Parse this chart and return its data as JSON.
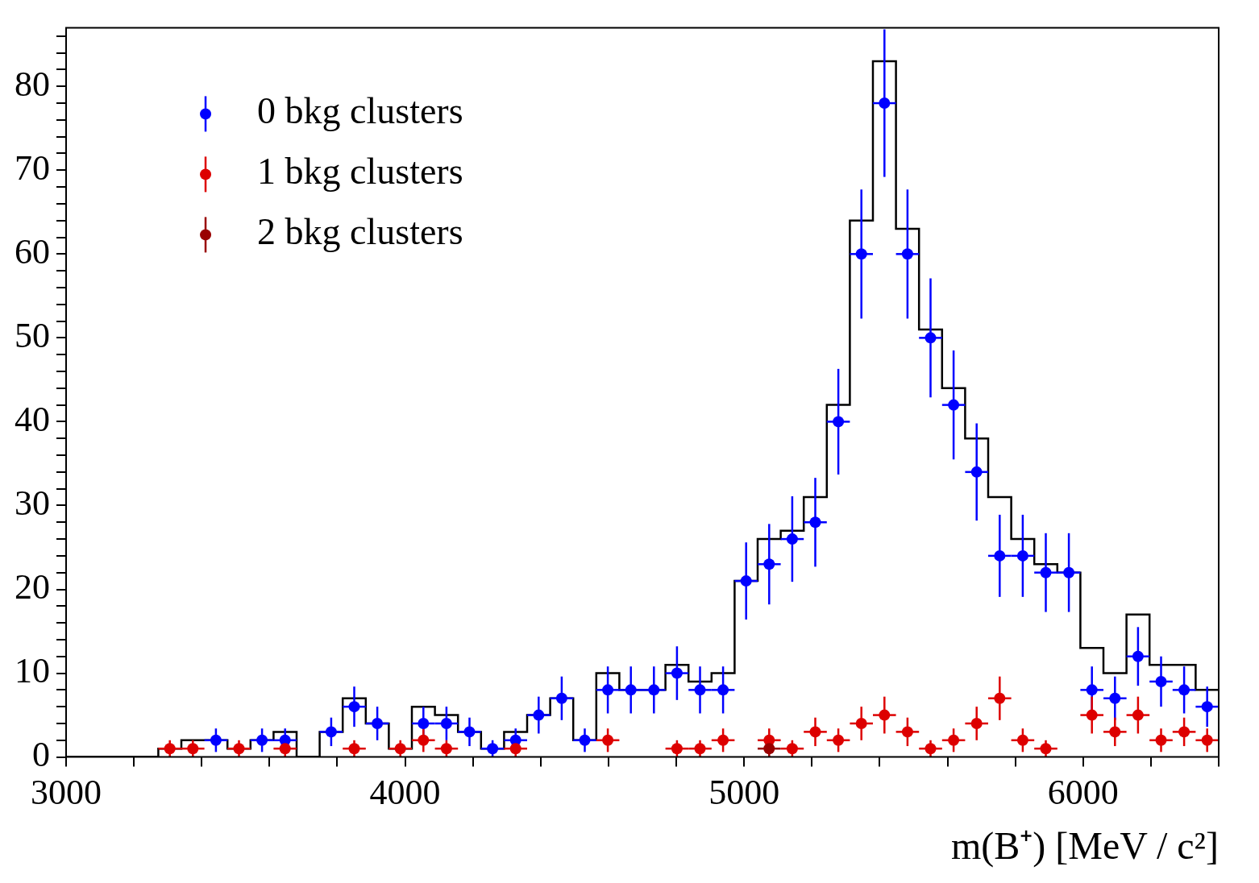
{
  "chart_data": {
    "type": "histogram",
    "xlabel": "m(B⁺) [MeV / c²]",
    "xlim": [
      3000,
      6400
    ],
    "ylim": [
      0,
      87
    ],
    "xticks": [
      3000,
      {
        "value": 3200,
        "label": null
      },
      {
        "value": 3400,
        "label": null
      },
      {
        "value": 3600,
        "label": null
      },
      {
        "value": 3800,
        "label": null
      },
      4000,
      {
        "value": 4200,
        "label": null
      },
      {
        "value": 4400,
        "label": null
      },
      {
        "value": 4600,
        "label": null
      },
      {
        "value": 4800,
        "label": null
      },
      5000,
      {
        "value": 5200,
        "label": null
      },
      {
        "value": 5400,
        "label": null
      },
      {
        "value": 5600,
        "label": null
      },
      {
        "value": 5800,
        "label": null
      },
      6000,
      {
        "value": 6200,
        "label": null
      },
      {
        "value": 6400,
        "label": null
      }
    ],
    "yticks": [
      0,
      {
        "value": 2,
        "label": null
      },
      {
        "value": 4,
        "label": null
      },
      {
        "value": 6,
        "label": null
      },
      {
        "value": 8,
        "label": null
      },
      10,
      {
        "value": 12,
        "label": null
      },
      {
        "value": 14,
        "label": null
      },
      {
        "value": 16,
        "label": null
      },
      {
        "value": 18,
        "label": null
      },
      20,
      {
        "value": 22,
        "label": null
      },
      {
        "value": 24,
        "label": null
      },
      {
        "value": 26,
        "label": null
      },
      {
        "value": 28,
        "label": null
      },
      30,
      {
        "value": 32,
        "label": null
      },
      {
        "value": 34,
        "label": null
      },
      {
        "value": 36,
        "label": null
      },
      {
        "value": 38,
        "label": null
      },
      40,
      {
        "value": 42,
        "label": null
      },
      {
        "value": 44,
        "label": null
      },
      {
        "value": 46,
        "label": null
      },
      {
        "value": 48,
        "label": null
      },
      50,
      {
        "value": 52,
        "label": null
      },
      {
        "value": 54,
        "label": null
      },
      {
        "value": 56,
        "label": null
      },
      {
        "value": 58,
        "label": null
      },
      60,
      {
        "value": 62,
        "label": null
      },
      {
        "value": 64,
        "label": null
      },
      {
        "value": 66,
        "label": null
      },
      {
        "value": 68,
        "label": null
      },
      70,
      {
        "value": 72,
        "label": null
      },
      {
        "value": 74,
        "label": null
      },
      {
        "value": 76,
        "label": null
      },
      {
        "value": 78,
        "label": null
      },
      80,
      {
        "value": 82,
        "label": null
      },
      {
        "value": 84,
        "label": null
      },
      {
        "value": 86,
        "label": null
      }
    ],
    "bins": [
      3000,
      3068,
      3136,
      3204,
      3272,
      3340,
      3408,
      3476,
      3544,
      3612,
      3680,
      3748,
      3816,
      3884,
      3952,
      4020,
      4088,
      4156,
      4224,
      4292,
      4360,
      4428,
      4496,
      4564,
      4632,
      4700,
      4768,
      4836,
      4904,
      4972,
      5040,
      5108,
      5176,
      5244,
      5312,
      5380,
      5448,
      5516,
      5584,
      5652,
      5720,
      5788,
      5856,
      5924,
      5992,
      6060,
      6128,
      6196,
      6264,
      6332,
      6400
    ],
    "legend": "top left",
    "marker": "circle",
    "series": [
      {
        "color": "#000000",
        "values": [
          0,
          0,
          0,
          0,
          1,
          2,
          2,
          1,
          2,
          3,
          0,
          3,
          7,
          4,
          1,
          6,
          5,
          3,
          1,
          3,
          5,
          7,
          2,
          10,
          8,
          8,
          11,
          9,
          10,
          21,
          26,
          27,
          31,
          42,
          64,
          83,
          63,
          51,
          44,
          38,
          31,
          26,
          23,
          22,
          13,
          10,
          17,
          11,
          11,
          8
        ]
      },
      {
        "type": "scatter",
        "name": "0 bkg clusters",
        "color": "#0000ff",
        "x": [
          3442,
          3578,
          3646,
          3782,
          3850,
          3918,
          4054,
          4122,
          4190,
          4258,
          4326,
          4394,
          4462,
          4530,
          4598,
          4666,
          4734,
          4802,
          4870,
          4938,
          5006,
          5074,
          5142,
          5210,
          5278,
          5346,
          5414,
          5482,
          5550,
          5618,
          5686,
          5754,
          5822,
          5890,
          5958,
          6026,
          6094,
          6162,
          6230,
          6298,
          6366
        ],
        "values": [
          2,
          2,
          2,
          3,
          6,
          4,
          4,
          4,
          3,
          1,
          2,
          5,
          7,
          2,
          8,
          8,
          8,
          10,
          8,
          8,
          21,
          23,
          26,
          28,
          40,
          60,
          78,
          60,
          50,
          42,
          34,
          24,
          24,
          22,
          22,
          8,
          7,
          12,
          9,
          8,
          6
        ],
        "errors": [
          1.4,
          1.4,
          1.4,
          1.7,
          2.4,
          2,
          2,
          2,
          1.7,
          1,
          1.4,
          2.2,
          2.6,
          1.4,
          2.8,
          2.8,
          2.8,
          3.2,
          2.8,
          2.8,
          4.6,
          4.8,
          5.1,
          5.3,
          6.3,
          7.7,
          8.8,
          7.7,
          7.1,
          6.5,
          5.8,
          4.9,
          4.9,
          4.7,
          4.7,
          2.8,
          2.6,
          3.5,
          3,
          2.8,
          2.4
        ],
        "xerrors": [
          34,
          34,
          34,
          34,
          34,
          34,
          34,
          34,
          34,
          34,
          34,
          34,
          34,
          34,
          34,
          34,
          34,
          34,
          34,
          34,
          34,
          34,
          34,
          34,
          34,
          34,
          34,
          34,
          34,
          34,
          34,
          34,
          34,
          34,
          34,
          34,
          34,
          34,
          34,
          34,
          34
        ]
      },
      {
        "type": "scatter",
        "name": "1 bkg clusters",
        "color": "#dd0000",
        "x": [
          3306,
          3374,
          3510,
          3646,
          3850,
          3986,
          4054,
          4122,
          4326,
          4598,
          4802,
          4870,
          4938,
          5074,
          5142,
          5210,
          5278,
          5346,
          5414,
          5482,
          5550,
          5618,
          5686,
          5754,
          5822,
          5890,
          6026,
          6094,
          6162,
          6230,
          6298,
          6366
        ],
        "values": [
          1,
          1,
          1,
          1,
          1,
          1,
          2,
          1,
          1,
          2,
          1,
          1,
          2,
          2,
          1,
          3,
          2,
          4,
          5,
          3,
          1,
          2,
          4,
          7,
          2,
          1,
          5,
          3,
          5,
          2,
          3,
          2
        ],
        "errors": [
          1,
          1,
          1,
          1,
          1,
          1,
          1.4,
          1,
          1,
          1.4,
          1,
          1,
          1.4,
          1.4,
          1,
          1.7,
          1.4,
          2,
          2.2,
          1.7,
          1,
          1.4,
          2,
          2.6,
          1.4,
          1,
          2.2,
          1.7,
          2.2,
          1.4,
          1.7,
          1.4
        ],
        "xerrors": [
          34,
          34,
          34,
          34,
          34,
          34,
          34,
          34,
          34,
          34,
          34,
          34,
          34,
          34,
          34,
          34,
          34,
          34,
          34,
          34,
          34,
          34,
          34,
          34,
          34,
          34,
          34,
          34,
          34,
          34,
          34,
          34
        ]
      },
      {
        "type": "scatter",
        "name": "2 bkg clusters",
        "color": "#990000",
        "x": [
          5074
        ],
        "values": [
          1
        ],
        "errors": [
          1
        ],
        "xerrors": [
          34
        ]
      }
    ]
  }
}
